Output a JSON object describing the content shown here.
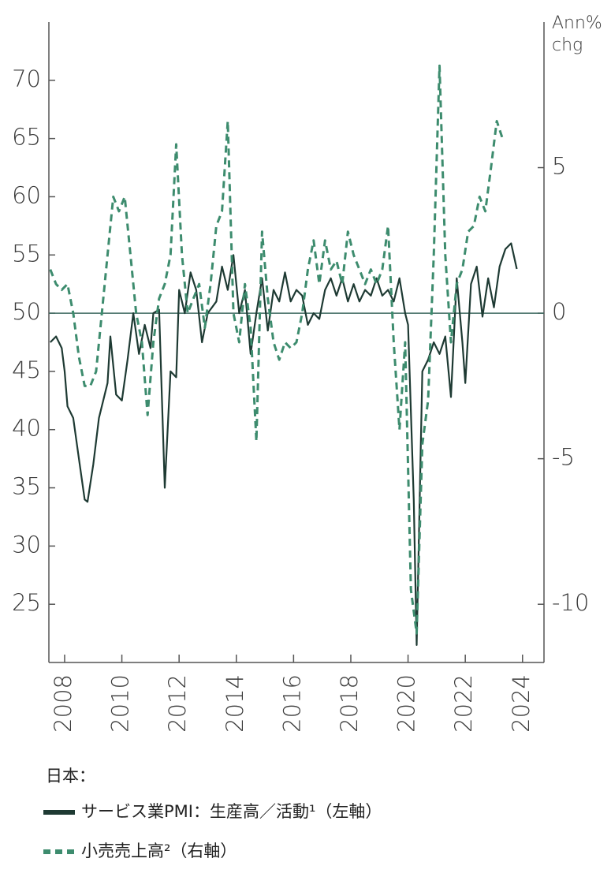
{
  "chart_data": {
    "type": "line",
    "y2_label_lines": [
      "Ann%",
      "chg"
    ],
    "legend_title": "日本：",
    "xlim": [
      2007.45,
      2024.75
    ],
    "xticks": [
      2008,
      2010,
      2012,
      2014,
      2016,
      2018,
      2020,
      2022,
      2024
    ],
    "ylim": [
      20,
      75
    ],
    "yticks": [
      25,
      30,
      35,
      40,
      45,
      50,
      55,
      60,
      65,
      70
    ],
    "y2lim": [
      -12,
      10
    ],
    "y2ticks": [
      -10,
      -5,
      0,
      5
    ],
    "reference_line": 50,
    "series": [
      {
        "name": "サービス業PMI：生産高／活動¹（左軸）",
        "color": "#1e3a33",
        "dashed": false,
        "x": [
          2007.5,
          2007.7,
          2007.9,
          2008.0,
          2008.1,
          2008.3,
          2008.5,
          2008.7,
          2008.8,
          2009.0,
          2009.2,
          2009.5,
          2009.6,
          2009.8,
          2010.0,
          2010.2,
          2010.4,
          2010.6,
          2010.8,
          2011.0,
          2011.1,
          2011.3,
          2011.5,
          2011.7,
          2011.9,
          2012.0,
          2012.2,
          2012.4,
          2012.6,
          2012.8,
          2013.0,
          2013.3,
          2013.5,
          2013.7,
          2013.9,
          2014.1,
          2014.3,
          2014.5,
          2014.7,
          2014.9,
          2015.1,
          2015.3,
          2015.5,
          2015.7,
          2015.9,
          2016.1,
          2016.3,
          2016.5,
          2016.7,
          2016.9,
          2017.1,
          2017.3,
          2017.5,
          2017.7,
          2017.9,
          2018.1,
          2018.3,
          2018.5,
          2018.7,
          2018.9,
          2019.1,
          2019.3,
          2019.5,
          2019.7,
          2019.9,
          2020.0,
          2020.2,
          2020.3,
          2020.5,
          2020.7,
          2020.9,
          2021.1,
          2021.3,
          2021.5,
          2021.7,
          2021.9,
          2022.0,
          2022.2,
          2022.4,
          2022.6,
          2022.8,
          2023.0,
          2023.2,
          2023.4,
          2023.6,
          2023.8
        ],
        "values": [
          47.5,
          48,
          47,
          45,
          42,
          41,
          37.5,
          34,
          33.8,
          37,
          41,
          44,
          48,
          43,
          42.5,
          46,
          50,
          46.5,
          49,
          47,
          50,
          50.3,
          35,
          45,
          44.5,
          52,
          50,
          53.5,
          52,
          47.5,
          50,
          51,
          54,
          52,
          55,
          50,
          52,
          46.5,
          50,
          53,
          48.5,
          52,
          51,
          53.5,
          51,
          52,
          51.5,
          49,
          50,
          49.5,
          52,
          53,
          51.5,
          53,
          51,
          52.5,
          51,
          52,
          51.5,
          53,
          51.5,
          52,
          51,
          53,
          50,
          49,
          34,
          21.5,
          45,
          46,
          47.5,
          46.5,
          48,
          42.8,
          53,
          47.5,
          44,
          52.5,
          54,
          49.7,
          53,
          50.5,
          54,
          55.5,
          56,
          53.8
        ]
      },
      {
        "name": "小売売上高²（右軸）",
        "color": "#3d8c6e",
        "dashed": true,
        "axis": "y2",
        "x": [
          2007.5,
          2007.7,
          2007.9,
          2008.1,
          2008.3,
          2008.5,
          2008.7,
          2008.9,
          2009.1,
          2009.3,
          2009.5,
          2009.7,
          2009.9,
          2010.1,
          2010.3,
          2010.5,
          2010.7,
          2010.9,
          2011.1,
          2011.3,
          2011.5,
          2011.7,
          2011.9,
          2012.1,
          2012.3,
          2012.5,
          2012.7,
          2012.9,
          2013.1,
          2013.3,
          2013.5,
          2013.7,
          2013.9,
          2014.1,
          2014.3,
          2014.5,
          2014.7,
          2014.9,
          2015.1,
          2015.3,
          2015.5,
          2015.7,
          2015.9,
          2016.1,
          2016.3,
          2016.5,
          2016.7,
          2016.9,
          2017.1,
          2017.3,
          2017.5,
          2017.7,
          2017.9,
          2018.1,
          2018.3,
          2018.5,
          2018.7,
          2018.9,
          2019.1,
          2019.3,
          2019.5,
          2019.7,
          2019.9,
          2020.1,
          2020.3,
          2020.5,
          2020.7,
          2020.9,
          2021.1,
          2021.3,
          2021.5,
          2021.7,
          2021.9,
          2022.1,
          2022.3,
          2022.5,
          2022.7,
          2022.9,
          2023.1,
          2023.3
        ],
        "values": [
          1.5,
          1,
          0.8,
          1,
          0,
          -1.5,
          -2.5,
          -2.5,
          -2,
          0,
          2,
          4,
          3.5,
          4,
          2,
          0,
          -1,
          -3.5,
          -1,
          0.5,
          1,
          2,
          5.8,
          2,
          0,
          0.5,
          1,
          -0.5,
          1,
          3,
          3.5,
          6.6,
          0,
          -1,
          1,
          -0.5,
          -4.4,
          2.8,
          0.5,
          -1,
          -1.6,
          -1,
          -1.2,
          -1,
          0,
          1.5,
          2.5,
          1,
          2.5,
          1.5,
          1.8,
          1,
          2.8,
          2,
          1.5,
          1,
          1.5,
          1,
          1.5,
          3,
          -1,
          -4,
          -1,
          -9.5,
          -11,
          -4.5,
          -3,
          2,
          8.5,
          2,
          -1,
          1,
          1.5,
          2.8,
          3,
          4,
          3.5,
          5,
          6.6,
          6
        ]
      }
    ]
  }
}
